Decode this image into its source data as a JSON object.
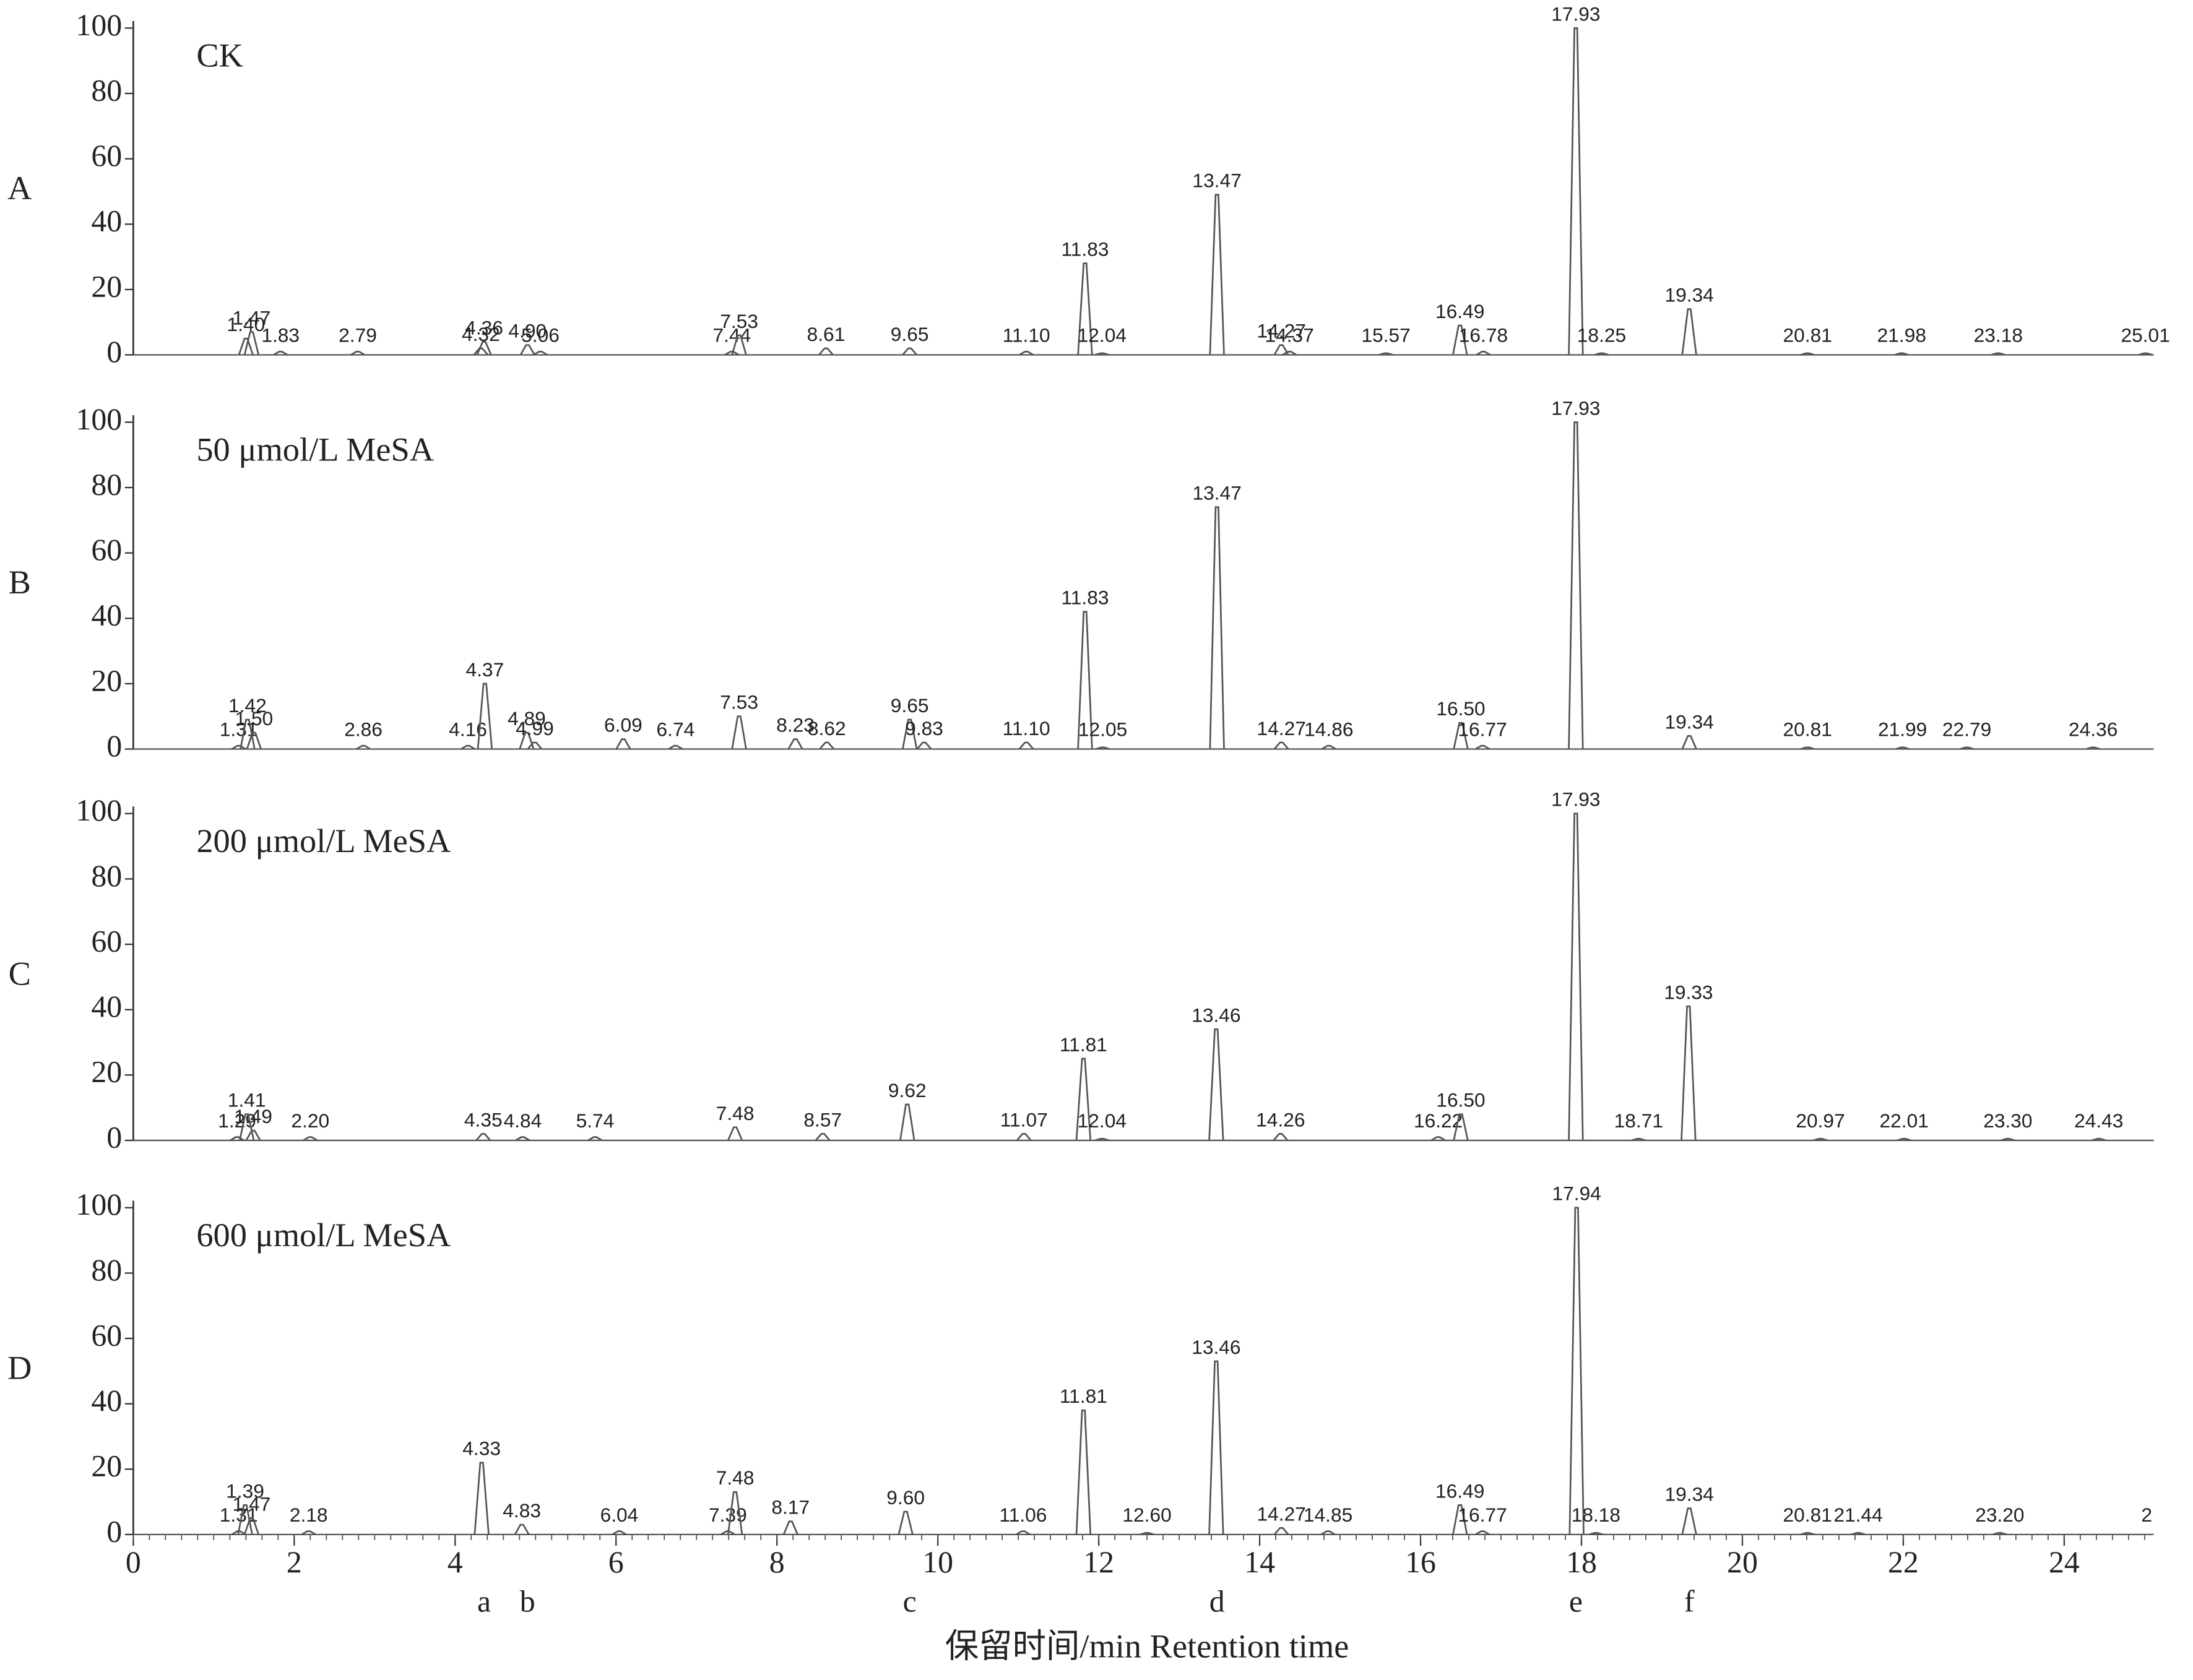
{
  "chart_data": [
    {
      "type": "chromatogram",
      "panel_label": "A",
      "annotation": "CK",
      "x": [
        1.4,
        1.47,
        1.83,
        2.79,
        4.32,
        4.36,
        4.9,
        5.06,
        7.44,
        7.53,
        8.61,
        9.65,
        11.1,
        11.83,
        12.04,
        13.47,
        14.27,
        14.37,
        15.57,
        16.49,
        16.78,
        17.93,
        18.25,
        19.34,
        20.81,
        21.98,
        23.18,
        25.01
      ],
      "x_labels": [
        "1.40",
        "1.47",
        "1.83",
        "2.79",
        "4.32",
        "4.36",
        "4.90",
        "5.06",
        "7.44",
        "7.53",
        "8.61",
        "9.65",
        "11.10",
        "11.83",
        "12.04",
        "13.47",
        "14.27",
        "14.37",
        "15.57",
        "16.49",
        "16.78",
        "17.93",
        "18.25",
        "19.34",
        "20.81",
        "21.98",
        "23.18",
        "25.01"
      ],
      "values": [
        5,
        7,
        1,
        1,
        2,
        4,
        3,
        1,
        1,
        6,
        2,
        2,
        1,
        28,
        0.5,
        49,
        3,
        1,
        0.5,
        9,
        1,
        100,
        0.5,
        14,
        0.5,
        0.5,
        0.5,
        0.5
      ],
      "xlim": [
        0,
        25.2
      ],
      "ylim": [
        0,
        100
      ],
      "yticks": [
        0,
        20,
        40,
        60,
        80,
        100
      ]
    },
    {
      "type": "chromatogram",
      "panel_label": "B",
      "annotation": "50 μmol/L MeSA",
      "x": [
        1.31,
        1.42,
        1.5,
        2.86,
        4.16,
        4.37,
        4.89,
        4.99,
        6.09,
        6.74,
        7.53,
        8.23,
        8.62,
        9.65,
        9.83,
        11.1,
        11.83,
        12.05,
        13.47,
        14.27,
        14.86,
        16.5,
        16.77,
        17.93,
        19.34,
        20.81,
        21.99,
        22.79,
        24.36
      ],
      "x_labels": [
        "1.31",
        "1.42",
        "1.50",
        "2.86",
        "4.16",
        "4.37",
        "4.89",
        "4.99",
        "6.09",
        "6.74",
        "7.53",
        "8.23",
        "8.62",
        "9.65",
        "9.83",
        "11.10",
        "11.83",
        "12.05",
        "13.47",
        "14.27",
        "14.86",
        "16.50",
        "16.77",
        "17.93",
        "19.34",
        "20.81",
        "21.99",
        "22.79",
        "24.36"
      ],
      "values": [
        1,
        9,
        5,
        1,
        1,
        20,
        5,
        2,
        3,
        1,
        10,
        3,
        2,
        9,
        2,
        2,
        42,
        0.5,
        74,
        2,
        1,
        8,
        1,
        100,
        4,
        0.5,
        0.5,
        0.5,
        0.5
      ],
      "xlim": [
        0,
        25.2
      ],
      "ylim": [
        0,
        100
      ],
      "yticks": [
        0,
        20,
        40,
        60,
        80,
        100
      ]
    },
    {
      "type": "chromatogram",
      "panel_label": "C",
      "annotation": "200 μmol/L MeSA",
      "x": [
        1.29,
        1.41,
        1.49,
        2.2,
        4.35,
        4.84,
        5.74,
        7.48,
        8.57,
        9.62,
        11.07,
        11.81,
        12.04,
        13.46,
        14.26,
        16.22,
        16.5,
        17.93,
        18.71,
        19.33,
        20.97,
        22.01,
        23.3,
        24.43
      ],
      "x_labels": [
        "1.29",
        "1.41",
        "1.49",
        "2.20",
        "4.35",
        "4.84",
        "5.74",
        "7.48",
        "8.57",
        "9.62",
        "11.07",
        "11.81",
        "12.04",
        "13.46",
        "14.26",
        "16.22",
        "16.50",
        "17.93",
        "18.71",
        "19.33",
        "20.97",
        "22.01",
        "23.30",
        "24.43"
      ],
      "values": [
        1,
        8,
        3,
        1,
        2,
        1,
        1,
        4,
        2,
        11,
        2,
        25,
        0.5,
        34,
        2,
        1,
        8,
        100,
        0.5,
        41,
        0.5,
        0.5,
        0.5,
        0.5
      ],
      "xlim": [
        0,
        25.2
      ],
      "ylim": [
        0,
        100
      ],
      "yticks": [
        0,
        20,
        40,
        60,
        80,
        100
      ]
    },
    {
      "type": "chromatogram",
      "panel_label": "D",
      "annotation": "600 μmol/L MeSA",
      "x": [
        1.31,
        1.39,
        1.47,
        2.18,
        4.33,
        4.83,
        6.04,
        7.39,
        7.48,
        8.17,
        9.6,
        11.06,
        11.81,
        12.6,
        13.46,
        14.27,
        14.85,
        16.49,
        16.77,
        17.94,
        18.18,
        19.34,
        20.81,
        21.44,
        23.2
      ],
      "x_labels": [
        "1.31",
        "1.39",
        "1.47",
        "2.18",
        "4.33",
        "4.83",
        "6.04",
        "7.39",
        "7.48",
        "8.17",
        "9.60",
        "11.06",
        "11.81",
        "12.60",
        "13.46",
        "14.27",
        "14.85",
        "16.49",
        "16.77",
        "17.94",
        "18.18",
        "19.34",
        "20.81",
        "21.44",
        "23.20"
      ],
      "values": [
        1,
        9,
        5,
        1,
        22,
        3,
        1,
        1,
        13,
        4,
        7,
        1,
        38,
        0.5,
        53,
        2,
        1,
        9,
        1,
        100,
        0.5,
        8,
        0.5,
        0.5,
        0.5
      ],
      "trailing_label": "2",
      "xlim": [
        0,
        25.2
      ],
      "ylim": [
        0,
        100
      ],
      "yticks": [
        0,
        20,
        40,
        60,
        80,
        100
      ],
      "xticks": [
        0,
        2,
        4,
        6,
        8,
        10,
        12,
        14,
        16,
        18,
        20,
        22,
        24
      ],
      "xlabel": "保留时间/min Retention time",
      "markers": {
        "labels": [
          "a",
          "b",
          "c",
          "d",
          "e",
          "f"
        ],
        "x": [
          4.36,
          4.9,
          9.65,
          13.47,
          17.93,
          19.34
        ]
      }
    }
  ]
}
